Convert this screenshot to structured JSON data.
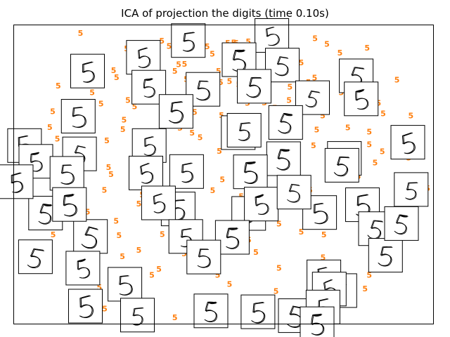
{
  "chart_data": {
    "type": "scatter",
    "title": "ICA of projection the digits (time 0.10s)",
    "xlabel": "",
    "ylabel": "",
    "grid": false,
    "axis_ticks": "none",
    "point_label": "5",
    "point_color": "#ff7f0e",
    "marker": "text-label",
    "image_annotations": "digit thumbnails of class 5",
    "xlim": [
      0,
      100
    ],
    "ylim": [
      0,
      100
    ],
    "points": [
      [
        15.9,
        97.2
      ],
      [
        35.3,
        94.6
      ],
      [
        64.4,
        98.3
      ],
      [
        41.9,
        94.8
      ],
      [
        45.0,
        96.4
      ],
      [
        51.0,
        93.9
      ],
      [
        52.4,
        94.0
      ],
      [
        55.9,
        94.4
      ],
      [
        42.5,
        91.7
      ],
      [
        46.1,
        92.7
      ],
      [
        47.3,
        90.2
      ],
      [
        53.0,
        93.9
      ],
      [
        58.8,
        92.6
      ],
      [
        71.8,
        95.4
      ],
      [
        74.6,
        93.5
      ],
      [
        77.7,
        90.6
      ],
      [
        84.2,
        92.3
      ],
      [
        26.9,
        92.0
      ],
      [
        29.9,
        91.8
      ],
      [
        37.0,
        92.8
      ],
      [
        40.6,
        94.8
      ],
      [
        65.1,
        91.6
      ],
      [
        64.4,
        89.8
      ],
      [
        82.4,
        86.9
      ],
      [
        19.6,
        87.6
      ],
      [
        31.9,
        89.7
      ],
      [
        39.3,
        86.7
      ],
      [
        40.7,
        86.8
      ],
      [
        61.6,
        90.7
      ],
      [
        68.5,
        87.3
      ],
      [
        23.8,
        84.7
      ],
      [
        24.5,
        82.4
      ],
      [
        38.4,
        84.5
      ],
      [
        41.1,
        81.8
      ],
      [
        48.8,
        84.5
      ],
      [
        56.5,
        82.4
      ],
      [
        62.8,
        83.5
      ],
      [
        71.7,
        82.3
      ],
      [
        84.2,
        81.3
      ],
      [
        91.3,
        81.6
      ],
      [
        16.9,
        82.2
      ],
      [
        19.2,
        79.7
      ],
      [
        32.4,
        80.2
      ],
      [
        49.3,
        80.8
      ],
      [
        51.4,
        81.1
      ],
      [
        53.6,
        80.0
      ],
      [
        65.8,
        79.2
      ],
      [
        70.2,
        80.7
      ],
      [
        10.6,
        79.6
      ],
      [
        18.7,
        77.4
      ],
      [
        33.2,
        78.0
      ],
      [
        42.5,
        76.9
      ],
      [
        58.6,
        78.1
      ],
      [
        68.9,
        76.9
      ],
      [
        78.0,
        77.4
      ],
      [
        20.8,
        73.6
      ],
      [
        27.2,
        74.8
      ],
      [
        28.8,
        72.6
      ],
      [
        45.3,
        74.3
      ],
      [
        55.7,
        73.8
      ],
      [
        59.7,
        74.0
      ],
      [
        62.2,
        72.2
      ],
      [
        65.6,
        74.8
      ],
      [
        79.7,
        73.2
      ],
      [
        81.0,
        75.3
      ],
      [
        86.9,
        73.8
      ],
      [
        9.3,
        71.0
      ],
      [
        18.3,
        70.6
      ],
      [
        26.3,
        68.2
      ],
      [
        39.9,
        70.7
      ],
      [
        43.1,
        70.8
      ],
      [
        49.5,
        69.7
      ],
      [
        55.9,
        68.5
      ],
      [
        64.6,
        69.3
      ],
      [
        73.6,
        69.6
      ],
      [
        88.0,
        70.3
      ],
      [
        94.6,
        69.6
      ],
      [
        8.6,
        65.7
      ],
      [
        26.0,
        65.0
      ],
      [
        36.2,
        66.1
      ],
      [
        39.6,
        65.5
      ],
      [
        42.5,
        63.9
      ],
      [
        54.6,
        63.2
      ],
      [
        57.8,
        65.9
      ],
      [
        72.2,
        64.9
      ],
      [
        79.6,
        65.6
      ],
      [
        84.7,
        64.2
      ],
      [
        92.1,
        62.0
      ],
      [
        10.4,
        61.8
      ],
      [
        22.2,
        61.3
      ],
      [
        29.5,
        61.4
      ],
      [
        44.4,
        62.3
      ],
      [
        50.9,
        60.4
      ],
      [
        71.4,
        59.6
      ],
      [
        84.7,
        60.0
      ],
      [
        93.1,
        59.2
      ],
      [
        13.1,
        57.3
      ],
      [
        17.6,
        58.0
      ],
      [
        33.9,
        56.1
      ],
      [
        49.0,
        57.8
      ],
      [
        62.2,
        56.7
      ],
      [
        66.7,
        55.6
      ],
      [
        74.9,
        56.6
      ],
      [
        87.8,
        57.6
      ],
      [
        94.1,
        55.5
      ],
      [
        10.3,
        53.5
      ],
      [
        22.6,
        52.3
      ],
      [
        31.7,
        51.8
      ],
      [
        44.0,
        52.4
      ],
      [
        54.2,
        54.6
      ],
      [
        58.9,
        51.7
      ],
      [
        78.1,
        53.0
      ],
      [
        86.1,
        53.9
      ],
      [
        23.2,
        50.0
      ],
      [
        29.0,
        48.5
      ],
      [
        39.7,
        48.8
      ],
      [
        42.3,
        47.3
      ],
      [
        49.7,
        48.2
      ],
      [
        66.9,
        49.4
      ],
      [
        68.9,
        47.3
      ],
      [
        82.1,
        49.3
      ],
      [
        92.1,
        47.2
      ],
      [
        13.1,
        44.8
      ],
      [
        21.6,
        44.7
      ],
      [
        30.6,
        43.2
      ],
      [
        47.4,
        44.6
      ],
      [
        54.2,
        42.6
      ],
      [
        60.3,
        43.2
      ],
      [
        70.6,
        44.7
      ],
      [
        85.1,
        43.2
      ],
      [
        98.6,
        45.3
      ],
      [
        14.8,
        39.0
      ],
      [
        17.6,
        37.4
      ],
      [
        29.8,
        40.1
      ],
      [
        40.6,
        38.7
      ],
      [
        59.4,
        37.3
      ],
      [
        67.4,
        39.3
      ],
      [
        85.7,
        39.1
      ],
      [
        95.9,
        38.7
      ],
      [
        8.0,
        35.8
      ],
      [
        24.4,
        34.4
      ],
      [
        35.2,
        35.9
      ],
      [
        42.1,
        33.4
      ],
      [
        56.3,
        35.5
      ],
      [
        63.2,
        33.5
      ],
      [
        76.2,
        36.5
      ],
      [
        86.7,
        34.1
      ],
      [
        9.4,
        29.8
      ],
      [
        19.4,
        31.0
      ],
      [
        25.1,
        29.6
      ],
      [
        35.4,
        29.9
      ],
      [
        43.5,
        30.1
      ],
      [
        49.0,
        28.4
      ],
      [
        56.0,
        28.0
      ],
      [
        68.5,
        30.7
      ],
      [
        73.9,
        29.8
      ],
      [
        83.5,
        29.2
      ],
      [
        90.0,
        31.1
      ],
      [
        6.5,
        23.4
      ],
      [
        16.2,
        23.5
      ],
      [
        25.9,
        22.5
      ],
      [
        29.8,
        24.6
      ],
      [
        40.6,
        23.5
      ],
      [
        57.7,
        24.0
      ],
      [
        73.7,
        22.2
      ],
      [
        88.2,
        21.6
      ],
      [
        13.0,
        16.8
      ],
      [
        18.0,
        18.7
      ],
      [
        32.9,
        16.3
      ],
      [
        34.6,
        18.3
      ],
      [
        48.6,
        16.3
      ],
      [
        63.2,
        18.7
      ],
      [
        70.9,
        18.4
      ],
      [
        84.7,
        16.3
      ],
      [
        20.4,
        12.2
      ],
      [
        25.3,
        10.9
      ],
      [
        51.4,
        13.3
      ],
      [
        62.5,
        10.9
      ],
      [
        74.0,
        13.4
      ],
      [
        78.4,
        11.1
      ],
      [
        83.7,
        11.7
      ],
      [
        21.7,
        5.1
      ],
      [
        30.4,
        4.2
      ],
      [
        38.4,
        2.1
      ],
      [
        70.2,
        4.8
      ],
      [
        74.6,
        5.3
      ]
    ],
    "thumbnails": [
      [
        61.4,
        96.6
      ],
      [
        30.8,
        89.3
      ],
      [
        41.5,
        94.9
      ],
      [
        53.6,
        88.5
      ],
      [
        63.9,
        86.7
      ],
      [
        81.5,
        83.1
      ],
      [
        17.5,
        84.7
      ],
      [
        32.1,
        79.3
      ],
      [
        45.0,
        78.6
      ],
      [
        57.2,
        79.6
      ],
      [
        71.1,
        75.8
      ],
      [
        82.7,
        75.4
      ],
      [
        15.3,
        69.6
      ],
      [
        38.6,
        71.2
      ],
      [
        53.4,
        64.1
      ],
      [
        64.7,
        67.5
      ],
      [
        2.5,
        59.8
      ],
      [
        32.2,
        59.8
      ],
      [
        54.8,
        64.9
      ],
      [
        64.2,
        55.4
      ],
      [
        15.6,
        57.0
      ],
      [
        31.4,
        50.6
      ],
      [
        41.1,
        51.1
      ],
      [
        56.3,
        51.0
      ],
      [
        78.7,
        55.5
      ],
      [
        78.1,
        53.2
      ],
      [
        93.8,
        60.9
      ],
      [
        5.2,
        54.5
      ],
      [
        12.6,
        50.5
      ],
      [
        39.1,
        38.6
      ],
      [
        55.9,
        37.1
      ],
      [
        58.9,
        40.2
      ],
      [
        72.8,
        37.4
      ],
      [
        83.0,
        40.0
      ],
      [
        94.6,
        45.1
      ],
      [
        7.5,
        37.2
      ],
      [
        18.2,
        29.4
      ],
      [
        34.4,
        40.6
      ],
      [
        40.9,
        29.4
      ],
      [
        52.0,
        29.1
      ],
      [
        66.7,
        44.2
      ],
      [
        86.1,
        32.0
      ],
      [
        0.5,
        47.7
      ],
      [
        13.2,
        40.1
      ],
      [
        45.2,
        22.5
      ],
      [
        88.5,
        23.1
      ],
      [
        5.1,
        22.6
      ],
      [
        16.4,
        18.8
      ],
      [
        26.4,
        13.4
      ],
      [
        58.1,
        4.2
      ],
      [
        77.6,
        11.3
      ],
      [
        92.3,
        33.7
      ],
      [
        73.8,
        15.9
      ],
      [
        17.0,
        6.1
      ],
      [
        29.4,
        3.1
      ],
      [
        46.9,
        4.5
      ],
      [
        67.0,
        2.9
      ],
      [
        75.1,
        11.8
      ],
      [
        73.6,
        5.8
      ],
      [
        72.2,
        0.2
      ]
    ]
  }
}
